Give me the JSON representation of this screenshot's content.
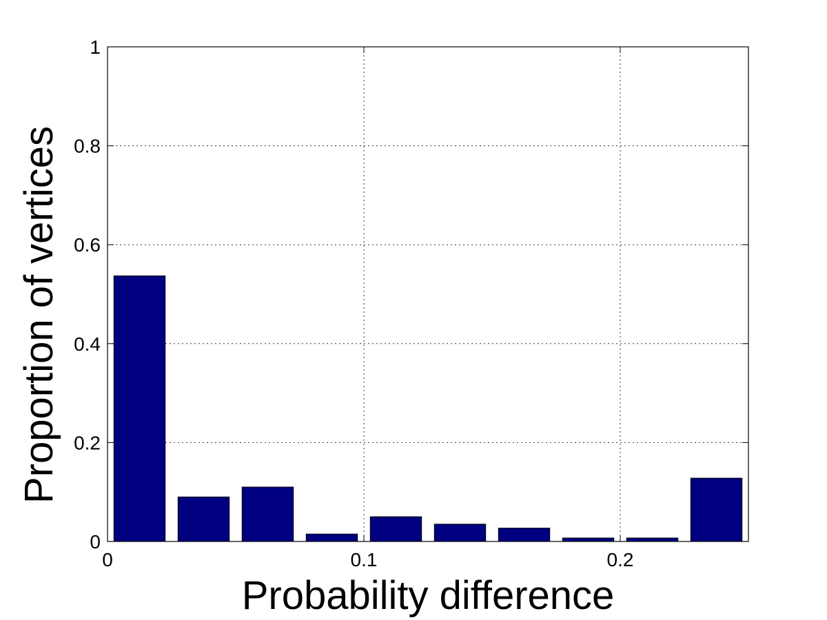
{
  "chart_data": {
    "type": "bar",
    "title": "",
    "xlabel": "Probability difference",
    "ylabel": "Proportion of vertices",
    "xlim": [
      0,
      0.25
    ],
    "ylim": [
      0,
      1
    ],
    "x_ticks": [
      0,
      0.1,
      0.2
    ],
    "x_tick_labels": [
      "0",
      "0.1",
      "0.2"
    ],
    "y_ticks": [
      0,
      0.2,
      0.4,
      0.6,
      0.8,
      1
    ],
    "y_tick_labels": [
      "0",
      "0.2",
      "0.4",
      "0.6",
      "0.8",
      "1"
    ],
    "grid": true,
    "bar_width": 0.02,
    "bar_color": "#000080",
    "x": [
      0.0125,
      0.0375,
      0.0625,
      0.0875,
      0.1125,
      0.1375,
      0.1625,
      0.1875,
      0.2125,
      0.2375
    ],
    "values": [
      0.537,
      0.09,
      0.11,
      0.015,
      0.05,
      0.035,
      0.027,
      0.007,
      0.007,
      0.128
    ]
  }
}
